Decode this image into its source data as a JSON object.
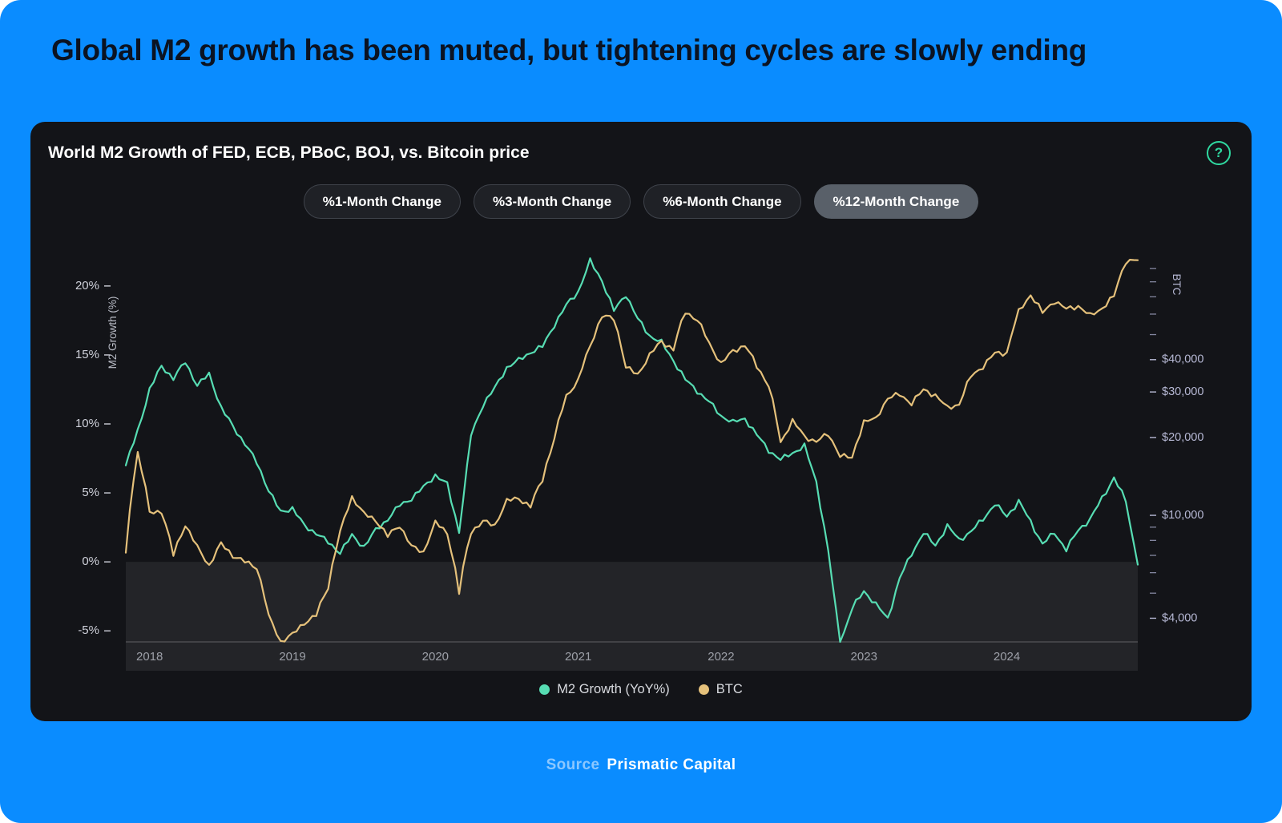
{
  "page": {
    "title": "Global M2 growth has been muted, but tightening cycles are slowly ending",
    "background_color": "#0a8cff"
  },
  "card": {
    "title": "World M2 Growth of FED, ECB, PBoC, BOJ, vs. Bitcoin price",
    "help_glyph": "?",
    "toggles": [
      {
        "label": "%1-Month Change",
        "selected": false
      },
      {
        "label": "%3-Month Change",
        "selected": false
      },
      {
        "label": "%6-Month Change",
        "selected": false
      },
      {
        "label": "%12-Month Change",
        "selected": true
      }
    ]
  },
  "footer": {
    "source_label": "Source",
    "source_name": "Prismatic Capital"
  },
  "chart_data": {
    "type": "line",
    "title": "World M2 Growth of FED, ECB, PBoC, BOJ, vs. Bitcoin price",
    "legend_position": "bottom",
    "shaded_below": 0,
    "x_ticks": [
      "2018",
      "2019",
      "2020",
      "2021",
      "2022",
      "2023",
      "2024"
    ],
    "left_axis": {
      "label": "M2 Growth (%)",
      "ticks": [
        "20%",
        "15%",
        "10%",
        "5%",
        "0%",
        "-5%"
      ],
      "tick_values": [
        20,
        15,
        10,
        5,
        0,
        -5
      ],
      "range": [
        -5.8,
        22.2
      ]
    },
    "right_axis": {
      "label": "BTC",
      "type": "log",
      "labeled_ticks": [
        {
          "label": "$40,000",
          "value": 40000
        },
        {
          "label": "$30,000",
          "value": 30000
        },
        {
          "label": "$20,000",
          "value": 20000
        },
        {
          "label": "$10,000",
          "value": 10000
        },
        {
          "label": "$4,000",
          "value": 4000
        }
      ],
      "minor_ticks": [
        90000,
        80000,
        70000,
        60000,
        50000,
        9000,
        8000,
        7000,
        6000,
        5000
      ],
      "range": [
        3240,
        101000
      ]
    },
    "x": [
      "2017-11",
      "2017-12",
      "2018-01",
      "2018-02",
      "2018-03",
      "2018-04",
      "2018-05",
      "2018-06",
      "2018-07",
      "2018-08",
      "2018-09",
      "2018-10",
      "2018-11",
      "2018-12",
      "2019-01",
      "2019-02",
      "2019-03",
      "2019-04",
      "2019-05",
      "2019-06",
      "2019-07",
      "2019-08",
      "2019-09",
      "2019-10",
      "2019-11",
      "2019-12",
      "2020-01",
      "2020-02",
      "2020-03",
      "2020-04",
      "2020-05",
      "2020-06",
      "2020-07",
      "2020-08",
      "2020-09",
      "2020-10",
      "2020-11",
      "2020-12",
      "2021-01",
      "2021-02",
      "2021-03",
      "2021-04",
      "2021-05",
      "2021-06",
      "2021-07",
      "2021-08",
      "2021-09",
      "2021-10",
      "2021-11",
      "2021-12",
      "2022-01",
      "2022-02",
      "2022-03",
      "2022-04",
      "2022-05",
      "2022-06",
      "2022-07",
      "2022-08",
      "2022-09",
      "2022-10",
      "2022-11",
      "2022-12",
      "2023-01",
      "2023-02",
      "2023-03",
      "2023-04",
      "2023-05",
      "2023-06",
      "2023-07",
      "2023-08",
      "2023-09",
      "2023-10",
      "2023-11",
      "2023-12",
      "2024-01",
      "2024-02",
      "2024-03",
      "2024-04",
      "2024-05",
      "2024-06",
      "2024-07",
      "2024-08",
      "2024-09",
      "2024-10",
      "2024-11",
      "2024-12"
    ],
    "series": [
      {
        "name": "M2 Growth (YoY%)",
        "axis": "left",
        "color": "#57ddb3",
        "values": [
          7.0,
          9.5,
          12.5,
          14.2,
          13.3,
          14.5,
          12.8,
          13.6,
          11.2,
          9.8,
          8.6,
          7.2,
          5.2,
          3.6,
          3.9,
          2.6,
          2.1,
          1.4,
          0.7,
          1.9,
          1.1,
          2.3,
          3.1,
          4.1,
          4.6,
          5.4,
          6.3,
          5.6,
          2.2,
          9.2,
          11.4,
          12.6,
          14.1,
          14.6,
          15.2,
          15.6,
          17.2,
          18.6,
          19.6,
          21.8,
          20.4,
          18.2,
          19.4,
          17.6,
          16.4,
          15.9,
          14.6,
          13.2,
          12.4,
          11.6,
          10.6,
          10.1,
          10.4,
          9.2,
          8.1,
          7.4,
          7.9,
          8.4,
          5.8,
          0.8,
          -5.9,
          -3.4,
          -2.1,
          -3.1,
          -4.1,
          -1.2,
          0.6,
          2.1,
          1.2,
          2.6,
          1.6,
          2.2,
          3.1,
          4.2,
          3.3,
          4.4,
          2.9,
          1.3,
          2.1,
          0.9,
          2.3,
          3.1,
          4.6,
          6.1,
          4.4,
          -0.2
        ]
      },
      {
        "name": "BTC",
        "axis": "right",
        "color": "#e5c17b",
        "values": [
          7000,
          17500,
          10200,
          10400,
          7000,
          9200,
          7500,
          6400,
          7750,
          7000,
          6600,
          6300,
          4050,
          3250,
          3450,
          3850,
          4100,
          5300,
          8550,
          11800,
          10100,
          9600,
          8300,
          9150,
          7550,
          7200,
          9350,
          8550,
          5000,
          8650,
          9450,
          9150,
          11350,
          11650,
          10800,
          13800,
          19700,
          29000,
          33100,
          45200,
          58800,
          57750,
          37300,
          35000,
          41600,
          47100,
          43800,
          61300,
          57000,
          46200,
          38500,
          43200,
          45500,
          37700,
          31800,
          19000,
          23300,
          20050,
          19400,
          20500,
          17100,
          16550,
          23100,
          23500,
          28500,
          29250,
          27200,
          30480,
          29230,
          25940,
          26960,
          34500,
          37700,
          42280,
          42580,
          61200,
          71300,
          60640,
          67500,
          62680,
          64620,
          58970,
          63330,
          70220,
          96400,
          97000
        ]
      }
    ]
  }
}
